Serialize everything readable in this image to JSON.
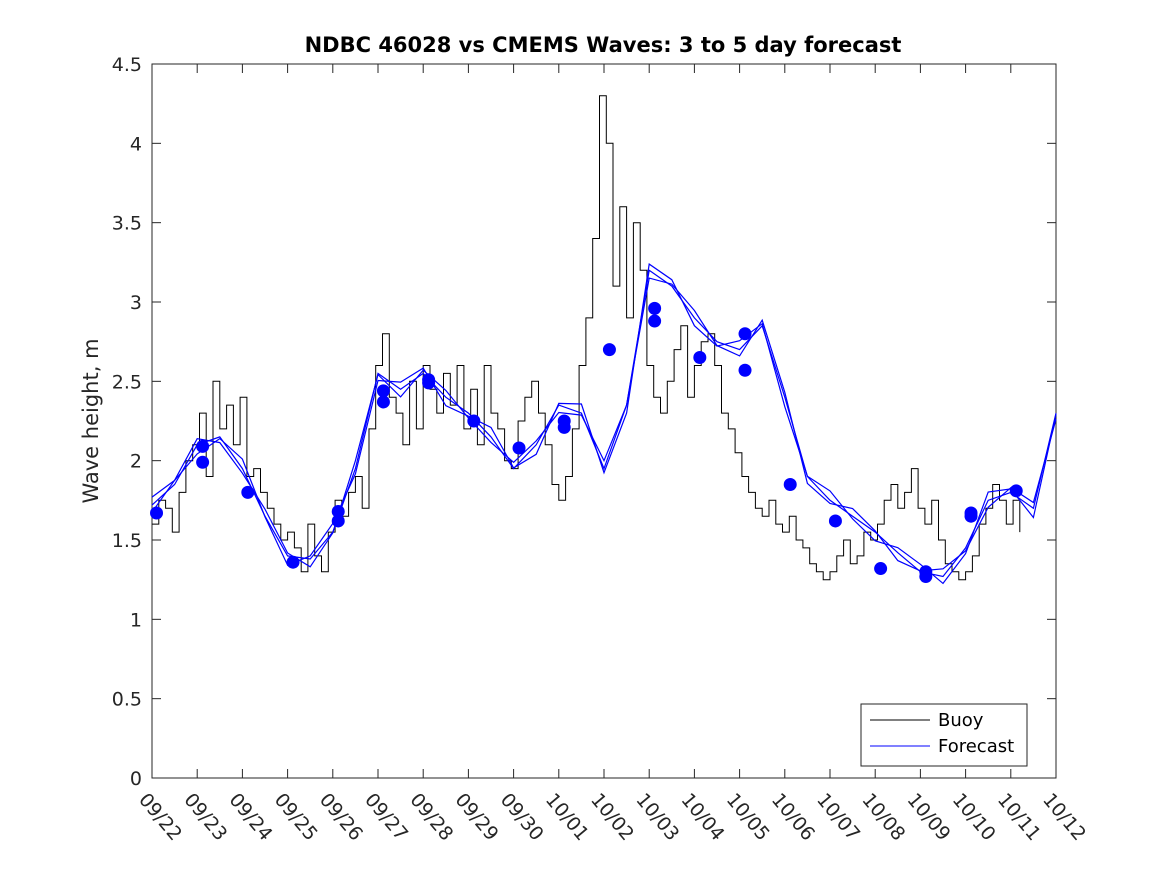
{
  "chart_data": {
    "type": "line",
    "title": "NDBC 46028 vs CMEMS Waves: 3 to 5 day forecast",
    "xlabel": "",
    "ylabel": "Wave height, m",
    "xlim": [
      0,
      20
    ],
    "ylim": [
      0,
      4.5
    ],
    "yticks": [
      "0",
      "0.5",
      "1",
      "1.5",
      "2",
      "2.5",
      "3",
      "3.5",
      "4",
      "4.5"
    ],
    "ytick_values": [
      0,
      0.5,
      1,
      1.5,
      2,
      2.5,
      3,
      3.5,
      4,
      4.5
    ],
    "xticks": [
      "09/22",
      "09/23",
      "09/24",
      "09/25",
      "09/26",
      "09/27",
      "09/28",
      "09/29",
      "09/30",
      "10/01",
      "10/02",
      "10/03",
      "10/04",
      "10/05",
      "10/06",
      "10/07",
      "10/08",
      "10/09",
      "10/10",
      "10/11",
      "10/12"
    ],
    "legend": {
      "position": "bottom-right",
      "entries": [
        "Buoy",
        "Forecast"
      ]
    },
    "colors": {
      "buoy": "#000000",
      "forecast": "#0000ff",
      "axis": "#262626"
    },
    "series": [
      {
        "name": "Buoy",
        "x": [
          0,
          0.15,
          0.3,
          0.45,
          0.6,
          0.75,
          0.9,
          1.05,
          1.2,
          1.35,
          1.5,
          1.65,
          1.8,
          1.95,
          2.1,
          2.25,
          2.4,
          2.55,
          2.7,
          2.85,
          3.0,
          3.15,
          3.3,
          3.45,
          3.6,
          3.75,
          3.9,
          4.05,
          4.2,
          4.35,
          4.5,
          4.65,
          4.8,
          4.95,
          5.1,
          5.25,
          5.4,
          5.55,
          5.7,
          5.85,
          6.0,
          6.15,
          6.3,
          6.45,
          6.6,
          6.75,
          6.9,
          7.05,
          7.2,
          7.35,
          7.5,
          7.65,
          7.8,
          7.95,
          8.1,
          8.25,
          8.4,
          8.55,
          8.7,
          8.85,
          9.0,
          9.15,
          9.3,
          9.45,
          9.6,
          9.75,
          9.9,
          10.05,
          10.2,
          10.35,
          10.5,
          10.65,
          10.8,
          10.95,
          11.1,
          11.25,
          11.4,
          11.55,
          11.7,
          11.85,
          12.0,
          12.15,
          12.3,
          12.45,
          12.6,
          12.75,
          12.9,
          13.05,
          13.2,
          13.35,
          13.5,
          13.65,
          13.8,
          13.95,
          14.1,
          14.25,
          14.4,
          14.55,
          14.7,
          14.85,
          15.0,
          15.15,
          15.3,
          15.45,
          15.6,
          15.75,
          15.9,
          16.05,
          16.2,
          16.35,
          16.5,
          16.65,
          16.8,
          16.95,
          17.1,
          17.25,
          17.4,
          17.55,
          17.7,
          17.85,
          18.0,
          18.15,
          18.3,
          18.45,
          18.6,
          18.75,
          18.9,
          19.05,
          19.2
        ],
        "values": [
          1.6,
          1.75,
          1.7,
          1.55,
          1.8,
          2.0,
          2.1,
          2.3,
          1.9,
          2.5,
          2.2,
          2.35,
          2.1,
          2.4,
          1.9,
          1.95,
          1.8,
          1.7,
          1.6,
          1.5,
          1.55,
          1.45,
          1.3,
          1.6,
          1.4,
          1.3,
          1.55,
          1.75,
          1.65,
          1.8,
          1.9,
          1.7,
          2.2,
          2.6,
          2.8,
          2.4,
          2.3,
          2.1,
          2.5,
          2.2,
          2.6,
          2.45,
          2.3,
          2.55,
          2.35,
          2.6,
          2.2,
          2.45,
          2.1,
          2.6,
          2.3,
          2.2,
          2.0,
          1.95,
          2.25,
          2.4,
          2.5,
          2.3,
          2.1,
          1.85,
          1.75,
          1.9,
          2.2,
          2.6,
          2.9,
          3.4,
          4.3,
          4.0,
          3.1,
          3.6,
          2.9,
          3.5,
          3.2,
          2.6,
          2.4,
          2.3,
          2.5,
          2.7,
          2.85,
          2.4,
          2.6,
          2.75,
          2.8,
          2.6,
          2.3,
          2.2,
          2.05,
          1.9,
          1.8,
          1.7,
          1.65,
          1.75,
          1.6,
          1.55,
          1.65,
          1.5,
          1.45,
          1.35,
          1.3,
          1.25,
          1.3,
          1.4,
          1.5,
          1.35,
          1.4,
          1.55,
          1.5,
          1.6,
          1.75,
          1.85,
          1.7,
          1.8,
          1.95,
          1.7,
          1.6,
          1.75,
          1.5,
          1.35,
          1.3,
          1.25,
          1.3,
          1.4,
          1.6,
          1.7,
          1.85,
          1.75,
          1.6,
          1.75,
          1.55
        ]
      },
      {
        "name": "Forecast",
        "x": [
          0,
          0.5,
          1.0,
          1.5,
          2.0,
          2.5,
          3.0,
          3.5,
          4.0,
          4.5,
          5.0,
          5.5,
          6.0,
          6.5,
          7.0,
          7.5,
          8.0,
          8.5,
          9.0,
          9.5,
          10.0,
          10.5,
          11.0,
          11.5,
          12.0,
          12.5,
          13.0,
          13.5,
          14.0,
          14.5,
          15.0,
          15.5,
          16.0,
          16.5,
          17.0,
          17.5,
          18.0,
          18.5,
          19.0,
          19.5,
          20.0
        ],
        "values": [
          1.72,
          1.85,
          2.1,
          2.15,
          1.95,
          1.65,
          1.4,
          1.38,
          1.55,
          1.95,
          2.55,
          2.45,
          2.55,
          2.4,
          2.3,
          2.15,
          1.95,
          2.1,
          2.35,
          2.3,
          1.95,
          2.35,
          3.2,
          3.1,
          2.9,
          2.75,
          2.7,
          2.85,
          2.4,
          1.9,
          1.75,
          1.65,
          1.55,
          1.42,
          1.3,
          1.27,
          1.45,
          1.75,
          1.8,
          1.7,
          2.3
        ]
      }
    ],
    "forecast_markers": {
      "name": "Forecast points",
      "x": [
        0.1,
        1.12,
        1.12,
        2.12,
        3.12,
        4.12,
        4.12,
        5.12,
        5.12,
        6.12,
        6.12,
        7.12,
        8.12,
        9.12,
        9.12,
        10.12,
        11.12,
        11.12,
        12.12,
        13.12,
        13.12,
        14.12,
        15.12,
        16.12,
        17.12,
        17.12,
        18.12,
        18.12,
        19.12
      ],
      "values": [
        1.67,
        2.09,
        1.99,
        1.8,
        1.36,
        1.68,
        1.62,
        2.44,
        2.37,
        2.51,
        2.49,
        2.25,
        2.08,
        2.25,
        2.21,
        2.7,
        2.96,
        2.88,
        2.65,
        2.8,
        2.57,
        1.85,
        1.62,
        1.32,
        1.3,
        1.27,
        1.67,
        1.65,
        1.81
      ]
    }
  }
}
